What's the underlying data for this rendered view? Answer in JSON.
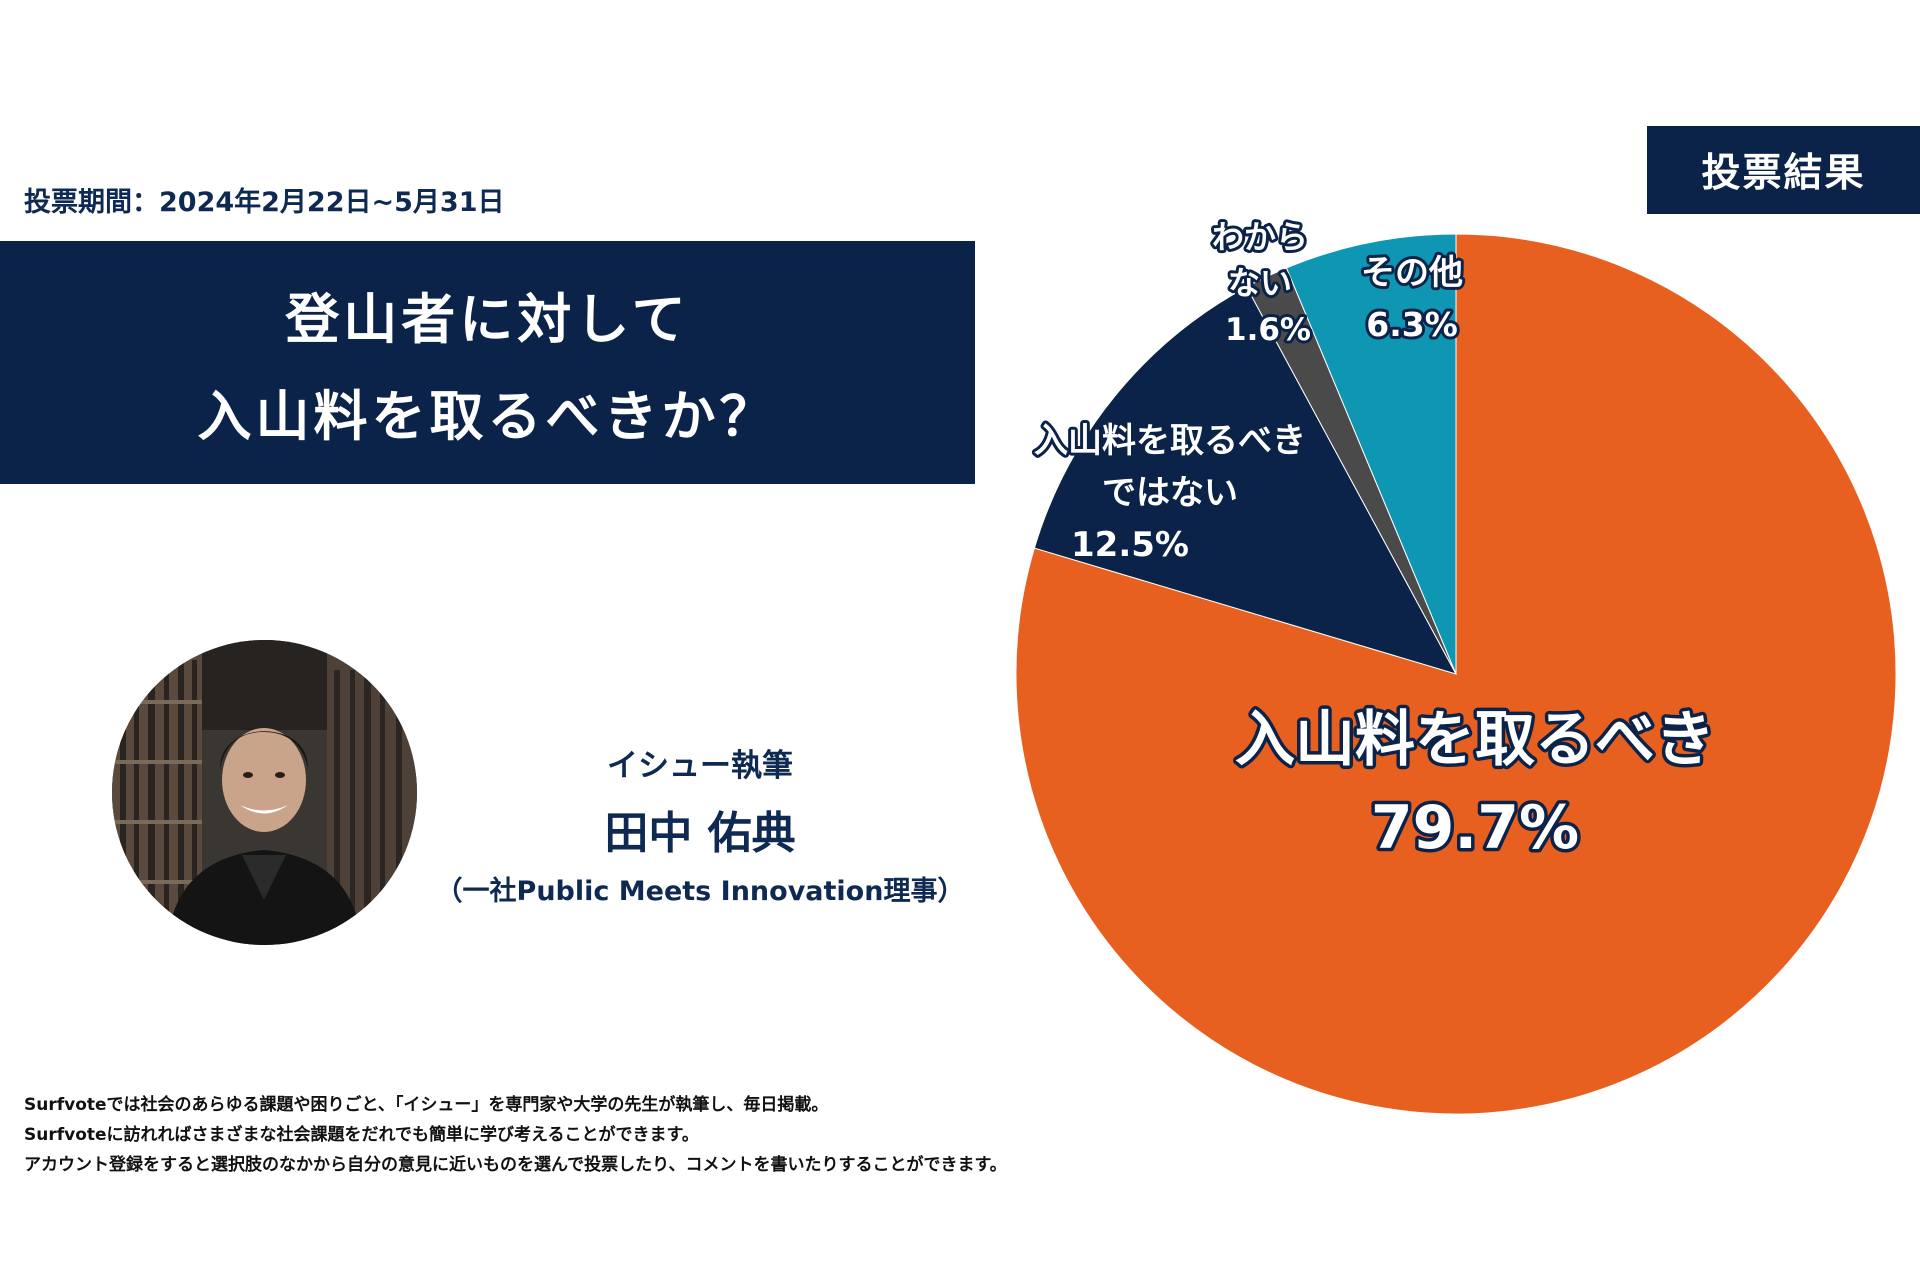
{
  "header": {
    "period": "投票期間：2024年2月22日~5月31日",
    "title_line1": "登山者に対して",
    "title_line2": "入山料を取るべきか？",
    "badge": "投票結果"
  },
  "author": {
    "role": "イシュー執筆",
    "name": "田中 佑典",
    "org": "（一社Public Meets Innovation理事）"
  },
  "footer": {
    "line1": "Surfvoteでは社会のあらゆる課題や困りごと、「イシュー」を専門家や大学の先生が執筆し、毎日掲載。",
    "line2": "Surfvoteに訪れればさまざまな社会課題をだれでも簡単に学び考えることができます。",
    "line3": "アカウント登録をすると選択肢のなかから自分の意見に近いものを選んで投票したり、コメントを書いたりすることができます。"
  },
  "chart_data": {
    "type": "pie",
    "slices": [
      {
        "label_lines": [
          "入山料を取るべき"
        ],
        "value_label": "79.7%",
        "value": 79.7,
        "color": "#e8601f"
      },
      {
        "label_lines": [
          "入山料を取るべき",
          "ではない"
        ],
        "value_label": "12.5%",
        "value": 12.5,
        "color": "#0b2249"
      },
      {
        "label_lines": [
          "わから",
          "ない"
        ],
        "value_label": "1.6%",
        "value": 1.6,
        "color": "#4a4a4a"
      },
      {
        "label_lines": [
          "その他"
        ],
        "value_label": "6.3%",
        "value": 6.3,
        "color": "#0e96b3"
      }
    ],
    "start": "12 o'clock",
    "direction": "clockwise"
  }
}
